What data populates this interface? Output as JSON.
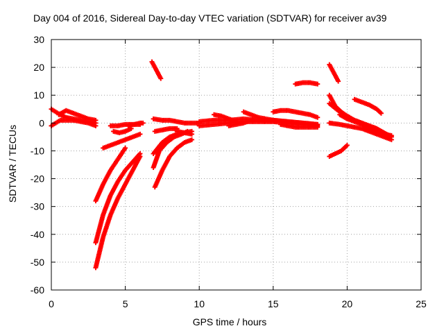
{
  "chart_data": {
    "type": "scatter",
    "title": "Day 004 of 2016, Sidereal Day-to-day VTEC variation (SDTVAR) for receiver av39",
    "xlabel": "GPS time / hours",
    "ylabel": "SDTVAR / TECUs",
    "xlim": [
      0,
      25
    ],
    "ylim": [
      -60,
      30
    ],
    "x_ticks": [
      "0",
      "5",
      "10",
      "15",
      "20",
      "25"
    ],
    "y_ticks": [
      "30",
      "20",
      "10",
      "0",
      "-10",
      "-20",
      "-30",
      "-40",
      "-50",
      "-60"
    ],
    "grid": true,
    "legend": "none",
    "marker": "plus",
    "color": "#ff0000",
    "series": [
      {
        "x": [
          0.0,
          0.3,
          0.6,
          1.0,
          1.5,
          2.0,
          2.5,
          3.0
        ],
        "y": [
          -1,
          0,
          1,
          1,
          1,
          0.5,
          0,
          -1
        ]
      },
      {
        "x": [
          0.0,
          0.3,
          0.6,
          1.0,
          1.5,
          2.0,
          2.5,
          3.0
        ],
        "y": [
          5,
          4,
          3,
          2,
          1.5,
          1,
          0.5,
          0
        ]
      },
      {
        "x": [
          0.5,
          1.0,
          1.5,
          2.0,
          2.5,
          3.0
        ],
        "y": [
          3,
          4.5,
          3.5,
          2.5,
          1.5,
          1
        ]
      },
      {
        "x": [
          3.0,
          3.5,
          4.0,
          4.5,
          5.0
        ],
        "y": [
          -28,
          -22,
          -17,
          -13,
          -9
        ]
      },
      {
        "x": [
          3.0,
          3.5,
          4.0,
          4.5,
          5.0,
          5.5,
          6.0
        ],
        "y": [
          -43,
          -33,
          -26,
          -21,
          -17,
          -14,
          -11
        ]
      },
      {
        "x": [
          3.0,
          3.5,
          4.0,
          4.5,
          5.0,
          5.5,
          6.0
        ],
        "y": [
          -52,
          -41,
          -33,
          -27,
          -22,
          -17,
          -12
        ]
      },
      {
        "x": [
          3.5,
          4.0,
          4.5,
          5.0,
          5.5,
          6.0
        ],
        "y": [
          -9,
          -8,
          -7,
          -6,
          -5,
          -4
        ]
      },
      {
        "x": [
          4.0,
          4.5,
          5.0,
          5.5,
          6.0
        ],
        "y": [
          -1,
          -1,
          -0.5,
          -0.5,
          -0.5
        ]
      },
      {
        "x": [
          4.2,
          4.6,
          5.0,
          5.4
        ],
        "y": [
          -3,
          -3.5,
          -3,
          -2
        ]
      },
      {
        "x": [
          5.2,
          5.6,
          6.0,
          6.2
        ],
        "y": [
          -1,
          -0.5,
          0,
          0
        ]
      },
      {
        "x": [
          6.8,
          7.0,
          7.2,
          7.4
        ],
        "y": [
          22,
          20,
          18,
          16
        ]
      },
      {
        "x": [
          7.0,
          7.5,
          8.0,
          8.5,
          9.0,
          9.5
        ],
        "y": [
          -23,
          -17,
          -12,
          -9,
          -7,
          -6
        ]
      },
      {
        "x": [
          6.9,
          7.3,
          7.8,
          8.3,
          8.8,
          9.2
        ],
        "y": [
          -16,
          -10,
          -7,
          -5,
          -4,
          -3
        ]
      },
      {
        "x": [
          6.9,
          7.5,
          8.0,
          8.5,
          9.0,
          9.5
        ],
        "y": [
          -11,
          -7,
          -5,
          -4,
          -3.5,
          -3
        ]
      },
      {
        "x": [
          6.9,
          7.5,
          8.0,
          8.5,
          9.0,
          9.5,
          10.0
        ],
        "y": [
          1.5,
          1,
          1,
          0.5,
          0,
          0,
          0
        ]
      },
      {
        "x": [
          7.0,
          7.5,
          8.0,
          8.5
        ],
        "y": [
          -3,
          -2.5,
          -2,
          -2
        ]
      },
      {
        "x": [
          8.5,
          9.0,
          9.5
        ],
        "y": [
          -3,
          -3.5,
          -4
        ]
      },
      {
        "x": [
          10.0,
          11.0,
          12.0,
          13.0,
          14.0,
          15.0,
          16.0,
          17.0,
          18.0
        ],
        "y": [
          -1,
          -0.5,
          0,
          0.5,
          0.5,
          0.5,
          0,
          -0.5,
          -1
        ]
      },
      {
        "x": [
          10.0,
          11.0,
          12.0,
          13.0,
          14.0,
          15.0,
          16.0,
          17.0,
          18.0
        ],
        "y": [
          0.5,
          1,
          1,
          1.5,
          1,
          1,
          0.5,
          0,
          -0.5
        ]
      },
      {
        "x": [
          11.0,
          11.5,
          12.0,
          12.5
        ],
        "y": [
          3,
          2.5,
          1.5,
          0.5
        ]
      },
      {
        "x": [
          12.0,
          13.0,
          13.5,
          14.0,
          15.0,
          16.0,
          17.0,
          18.0
        ],
        "y": [
          -1,
          0,
          1,
          1,
          1,
          0.5,
          0,
          -0.5
        ]
      },
      {
        "x": [
          13.0,
          13.5,
          14.0,
          14.5,
          15.0
        ],
        "y": [
          4,
          3,
          2,
          1.5,
          1
        ]
      },
      {
        "x": [
          15.0,
          15.5,
          16.0,
          16.5,
          17.0,
          17.5,
          18.0
        ],
        "y": [
          4,
          4.5,
          4.5,
          4,
          3.5,
          3,
          2
        ]
      },
      {
        "x": [
          16.5,
          17.0,
          17.5,
          18.0
        ],
        "y": [
          14,
          14.5,
          14.5,
          14
        ]
      },
      {
        "x": [
          15.5,
          16.0,
          16.5,
          17.0,
          17.5,
          18.0
        ],
        "y": [
          -0.5,
          -1,
          -1.5,
          -1.5,
          -1.5,
          -1.5
        ]
      },
      {
        "x": [
          18.8,
          19.0,
          19.2,
          19.4
        ],
        "y": [
          21,
          19,
          17,
          15
        ]
      },
      {
        "x": [
          18.8,
          19.2,
          19.6,
          20.0
        ],
        "y": [
          -12,
          -11,
          -10,
          -8
        ]
      },
      {
        "x": [
          18.8,
          19.2,
          19.6,
          20.0,
          20.5,
          21.0,
          21.5,
          22.0
        ],
        "y": [
          10,
          6,
          4,
          2.5,
          1,
          0,
          -1,
          -2
        ]
      },
      {
        "x": [
          18.8,
          19.5,
          20.0,
          20.5,
          21.0,
          21.5,
          22.0,
          22.5,
          23.0
        ],
        "y": [
          7,
          4,
          2.5,
          1,
          0,
          -1,
          -2,
          -3.5,
          -5
        ]
      },
      {
        "x": [
          18.8,
          19.5,
          20.0,
          20.5,
          21.0,
          21.5,
          22.0,
          22.5,
          23.0
        ],
        "y": [
          0,
          -0.5,
          -1,
          -1.5,
          -2,
          -3,
          -4,
          -5,
          -6
        ]
      },
      {
        "x": [
          19.5,
          20.0,
          20.5,
          21.0,
          21.5,
          22.0,
          22.5,
          23.0
        ],
        "y": [
          3,
          1.5,
          0.5,
          -0.5,
          -2,
          -3,
          -4,
          -4.5
        ]
      },
      {
        "x": [
          20.5,
          21.0,
          21.5,
          22.0,
          22.3
        ],
        "y": [
          8.5,
          7.5,
          6.5,
          5,
          3.5
        ]
      }
    ]
  }
}
